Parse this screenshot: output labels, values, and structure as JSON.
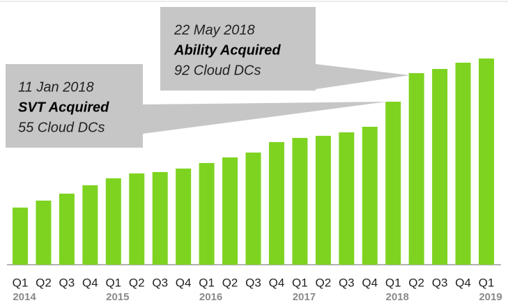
{
  "chart_data": {
    "type": "bar",
    "categories": [
      "Q1",
      "Q2",
      "Q3",
      "Q4",
      "Q1",
      "Q2",
      "Q3",
      "Q4",
      "Q1",
      "Q2",
      "Q3",
      "Q4",
      "Q1",
      "Q2",
      "Q3",
      "Q4",
      "Q1",
      "Q2",
      "Q3",
      "Q4",
      "Q1"
    ],
    "year_labels": [
      "2014",
      null,
      null,
      null,
      "2015",
      null,
      null,
      null,
      "2016",
      null,
      null,
      null,
      "2017",
      null,
      null,
      null,
      "2018",
      null,
      null,
      null,
      "2019"
    ],
    "values": [
      82,
      92,
      102,
      114,
      124,
      131,
      133,
      138,
      146,
      154,
      161,
      176,
      182,
      185,
      190,
      198,
      234,
      275,
      281,
      290,
      296
    ],
    "color": "#7ed321",
    "annotations": [
      {
        "date": "11 Jan 2018",
        "event": "SVT Acquired",
        "detail": "55 Cloud DCs"
      },
      {
        "date": "22 May 2018",
        "event": "Ability Acquired",
        "detail": "92 Cloud DCs"
      }
    ]
  }
}
